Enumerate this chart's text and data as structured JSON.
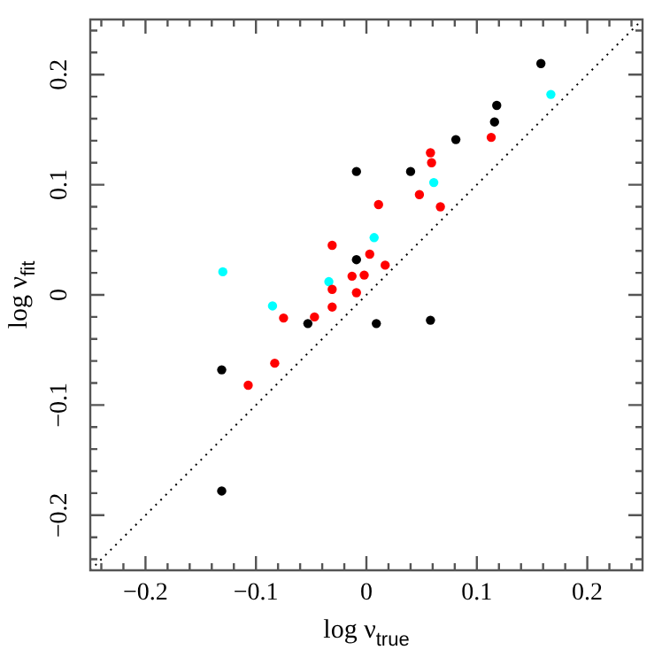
{
  "chart_data": {
    "type": "scatter",
    "xlabel": "log ν$_{true}$",
    "ylabel": "log ν$_{fit}$",
    "xlim": [
      -0.25,
      0.25
    ],
    "ylim": [
      -0.25,
      0.25
    ],
    "xticks": [
      -0.2,
      {
        "value": -0.18,
        "label": null
      },
      {
        "value": -0.16,
        "label": null
      },
      {
        "value": -0.14,
        "label": null
      },
      {
        "value": -0.12,
        "label": null
      },
      -0.1,
      {
        "value": -0.08,
        "label": null
      },
      {
        "value": -0.06,
        "label": null
      },
      {
        "value": -0.04,
        "label": null
      },
      {
        "value": -0.02,
        "label": null
      },
      0,
      {
        "value": 0.02,
        "label": null
      },
      {
        "value": 0.04,
        "label": null
      },
      {
        "value": 0.06,
        "label": null
      },
      {
        "value": 0.08,
        "label": null
      },
      0.1,
      {
        "value": 0.12,
        "label": null
      },
      {
        "value": 0.14,
        "label": null
      },
      {
        "value": 0.16,
        "label": null
      },
      {
        "value": 0.18,
        "label": null
      },
      0.2,
      {
        "value": -0.24,
        "label": null
      },
      {
        "value": -0.22,
        "label": null
      },
      {
        "value": 0.22,
        "label": null
      },
      {
        "value": 0.24,
        "label": null
      }
    ],
    "yticks": [
      -0.2,
      {
        "value": -0.18,
        "label": null
      },
      {
        "value": -0.16,
        "label": null
      },
      {
        "value": -0.14,
        "label": null
      },
      {
        "value": -0.12,
        "label": null
      },
      -0.1,
      {
        "value": -0.08,
        "label": null
      },
      {
        "value": -0.06,
        "label": null
      },
      {
        "value": -0.04,
        "label": null
      },
      {
        "value": -0.02,
        "label": null
      },
      0,
      {
        "value": 0.02,
        "label": null
      },
      {
        "value": 0.04,
        "label": null
      },
      {
        "value": 0.06,
        "label": null
      },
      {
        "value": 0.08,
        "label": null
      },
      0.1,
      {
        "value": 0.12,
        "label": null
      },
      {
        "value": 0.14,
        "label": null
      },
      {
        "value": 0.16,
        "label": null
      },
      {
        "value": 0.18,
        "label": null
      },
      0.2,
      {
        "value": -0.24,
        "label": null
      },
      {
        "value": -0.22,
        "label": null
      },
      {
        "value": 0.22,
        "label": null
      },
      {
        "value": 0.24,
        "label": null
      }
    ],
    "grid": false,
    "legend": false,
    "marker": "circle",
    "series": [
      {
        "type": "line",
        "color": "#000000",
        "x": [
          -0.25,
          0.25
        ],
        "values": [
          -0.25,
          0.25
        ],
        "marker": "none",
        "line_style": "dotted"
      },
      {
        "color": "#000000",
        "x": [
          0.158,
          0.118,
          0.116,
          0.081,
          -0.009,
          0.04,
          -0.009,
          -0.053,
          0.009,
          0.058,
          -0.131,
          -0.131
        ],
        "values": [
          0.21,
          0.172,
          0.157,
          0.141,
          0.112,
          0.112,
          0.032,
          -0.026,
          -0.026,
          -0.023,
          -0.068,
          -0.178
        ]
      },
      {
        "color": "#ff0000",
        "x": [
          0.113,
          0.058,
          0.059,
          0.048,
          0.011,
          0.067,
          -0.031,
          0.003,
          0.017,
          -0.013,
          -0.002,
          -0.031,
          -0.009,
          -0.031,
          -0.075,
          -0.047,
          -0.083,
          -0.107
        ],
        "values": [
          0.143,
          0.129,
          0.12,
          0.091,
          0.082,
          0.08,
          0.045,
          0.037,
          0.027,
          0.017,
          0.018,
          0.005,
          0.002,
          -0.011,
          -0.021,
          -0.02,
          -0.062,
          -0.082
        ]
      },
      {
        "color": "#00ffff",
        "x": [
          0.167,
          0.061,
          0.007,
          -0.13,
          -0.034,
          -0.085
        ],
        "values": [
          0.182,
          0.102,
          0.052,
          0.021,
          0.012,
          -0.01
        ]
      }
    ]
  }
}
